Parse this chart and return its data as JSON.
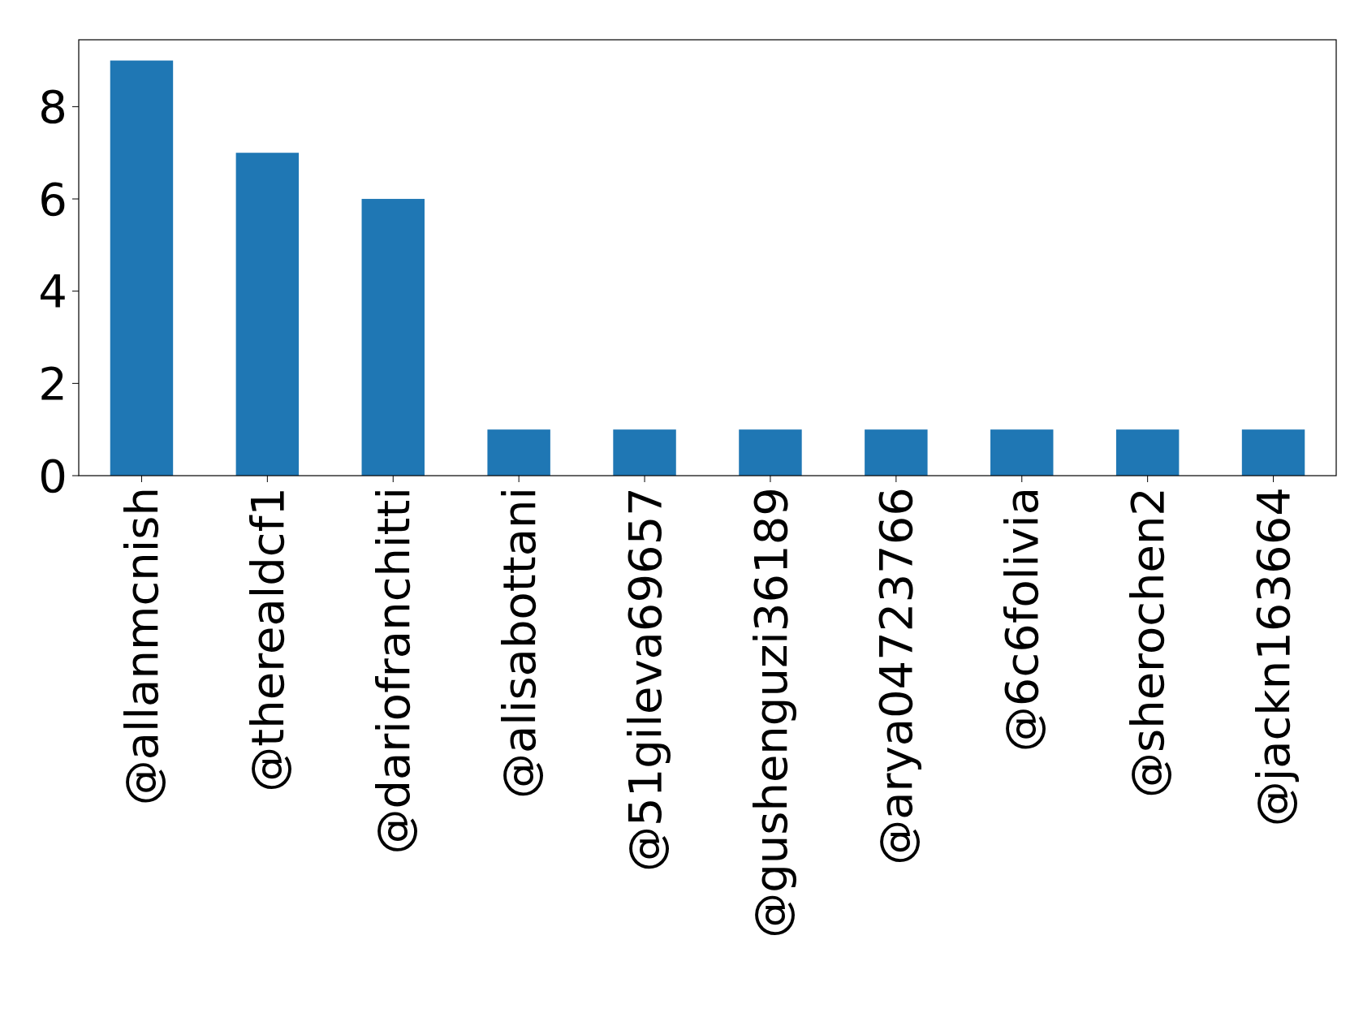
{
  "chart_data": {
    "type": "bar",
    "categories": [
      "@allanmcnish",
      "@therealdcf1",
      "@dariofranchitti",
      "@alisabottani",
      "@51gileva69657",
      "@gushenguzi36189",
      "@arya04723766",
      "@6c6folivia",
      "@sherochen2",
      "@jackn163664"
    ],
    "values": [
      9,
      7,
      6,
      1,
      1,
      1,
      1,
      1,
      1,
      1
    ],
    "color": "#1f77b4",
    "ylim": [
      0,
      9.45
    ],
    "yticks": [
      0,
      2,
      4,
      6,
      8
    ],
    "grid": false
  }
}
